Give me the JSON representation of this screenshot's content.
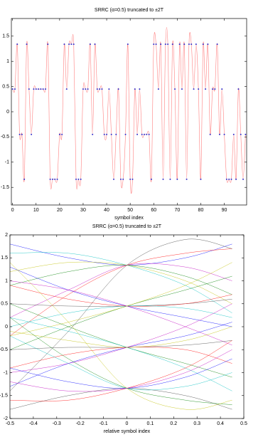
{
  "chart_data": [
    {
      "type": "line",
      "title": "SRRC (α=0.5) truncated to ±2T",
      "xlabel": "symbol index",
      "x": [
        0,
        1,
        2,
        3,
        4,
        5,
        6,
        7,
        8,
        9,
        10,
        11,
        12,
        13,
        14,
        15,
        16,
        17,
        18,
        19,
        20,
        21,
        22,
        23,
        24,
        25,
        26,
        27,
        28,
        29,
        30,
        31,
        32,
        33,
        34,
        35,
        36,
        37,
        38,
        39,
        40,
        41,
        42,
        43,
        44,
        45,
        46,
        47,
        48,
        49,
        50,
        51,
        52,
        53,
        54,
        55,
        56,
        57,
        58,
        59,
        60,
        61,
        62,
        63,
        64,
        65,
        66,
        67,
        68,
        69,
        70,
        71,
        72,
        73,
        74,
        75,
        76,
        77,
        78,
        79,
        80,
        81,
        82,
        83,
        84,
        85,
        86,
        87,
        88,
        89,
        90,
        91,
        92,
        93,
        94,
        95,
        96,
        97,
        98,
        99
      ],
      "series": [
        {
          "color": "#ff8080",
          "marker_color": "#3333cc",
          "markers": true,
          "values": [
            0.45,
            0.45,
            1.34,
            -0.45,
            -0.45,
            -1.34,
            1.34,
            0.45,
            -0.45,
            0.45,
            0.45,
            0.45,
            0.45,
            0.45,
            0.45,
            1.34,
            -1.34,
            -1.34,
            -1.34,
            -1.34,
            -0.45,
            -0.45,
            1.34,
            0.45,
            1.34,
            1.34,
            1.34,
            -1.34,
            -1.34,
            -1.34,
            0.45,
            0.45,
            0.45,
            1.34,
            -0.45,
            1.34,
            0.45,
            0.45,
            0.45,
            -0.45,
            -0.45,
            0.45,
            -0.45,
            -1.34,
            -0.45,
            0.45,
            -1.34,
            -1.34,
            -0.45,
            1.34,
            -1.34,
            -1.34,
            0.45,
            -0.45,
            0.45,
            -0.45,
            -0.45,
            -0.45,
            -0.45,
            -1.34,
            1.34,
            1.34,
            0.45,
            1.34,
            -1.34,
            1.34,
            1.34,
            -1.34,
            1.34,
            0.45,
            -1.34,
            1.34,
            0.45,
            1.34,
            -1.34,
            1.34,
            1.34,
            0.45,
            1.34,
            0.45,
            -1.34,
            1.34,
            0.45,
            1.34,
            -0.45,
            0.45,
            0.45,
            1.34,
            -0.45,
            0.45,
            -0.45,
            -1.34,
            -1.34,
            -1.34,
            -0.45,
            -1.34,
            0.45,
            -0.45,
            -1.34,
            -0.45
          ]
        }
      ],
      "xlim": [
        -0.5,
        99.5
      ],
      "ylim": [
        -1.85,
        1.85
      ],
      "xticks": [
        0,
        10,
        20,
        30,
        40,
        50,
        60,
        70,
        80,
        90
      ],
      "yticks": [
        -1.5,
        -1,
        -0.5,
        0,
        0.5,
        1,
        1.5
      ]
    },
    {
      "type": "eye",
      "title": "SRRC (α=0.5) truncated to ±2T",
      "xlabel": "relative symbol index",
      "x": [
        -0.5,
        -0.25,
        0,
        0.25,
        0.45
      ],
      "colors": [
        "#0000ff",
        "#008000",
        "#ff0000",
        "#00bfbf",
        "#bf00bf",
        "#bfbf00",
        "#404040"
      ],
      "series": [
        {
          "values": [
            1.8,
            1.5,
            1.34,
            1.5,
            1.8
          ]
        },
        {
          "values": [
            0.9,
            1.2,
            1.34,
            1.1,
            0.7
          ]
        },
        {
          "values": [
            -0.2,
            0.7,
            1.34,
            1.6,
            1.7
          ]
        },
        {
          "values": [
            1.6,
            1.6,
            1.34,
            0.9,
            0.3
          ]
        },
        {
          "values": [
            0.2,
            0.8,
            1.34,
            1.3,
            1.0
          ]
        },
        {
          "values": [
            1.2,
            1.4,
            1.34,
            1.0,
            0.5
          ]
        },
        {
          "values": [
            0.5,
            0.45,
            0.45,
            0.5,
            0.6
          ]
        },
        {
          "values": [
            1.3,
            0.8,
            0.45,
            0.2,
            0.0
          ]
        },
        {
          "values": [
            -0.5,
            0.0,
            0.45,
            0.8,
            1.1
          ]
        },
        {
          "values": [
            0.9,
            0.6,
            0.45,
            0.5,
            0.7
          ]
        },
        {
          "values": [
            0.0,
            0.3,
            0.45,
            0.4,
            0.2
          ]
        },
        {
          "values": [
            1.0,
            0.8,
            0.45,
            0.0,
            -0.4
          ]
        },
        {
          "values": [
            -0.2,
            0.1,
            0.45,
            0.9,
            1.4
          ]
        },
        {
          "values": [
            -0.5,
            -0.45,
            -0.45,
            -0.4,
            -0.3
          ]
        },
        {
          "values": [
            -1.3,
            -0.8,
            -0.45,
            -0.2,
            0.1
          ]
        },
        {
          "values": [
            0.5,
            0.0,
            -0.45,
            -0.8,
            -1.1
          ]
        },
        {
          "values": [
            -0.9,
            -0.6,
            -0.45,
            -0.5,
            -0.8
          ]
        },
        {
          "values": [
            0.2,
            -0.1,
            -0.45,
            -0.9,
            -1.4
          ]
        },
        {
          "values": [
            -1.0,
            -0.8,
            -0.45,
            0.0,
            0.5
          ]
        },
        {
          "values": [
            -0.1,
            -0.3,
            -0.45,
            -0.3,
            0.0
          ]
        },
        {
          "values": [
            -1.8,
            -1.5,
            -1.34,
            -1.5,
            -1.8
          ]
        },
        {
          "values": [
            -0.9,
            -1.2,
            -1.34,
            -1.1,
            -0.7
          ]
        },
        {
          "values": [
            0.2,
            -0.7,
            -1.34,
            -1.6,
            -1.7
          ]
        },
        {
          "values": [
            -1.6,
            -1.6,
            -1.34,
            -0.9,
            -0.3
          ]
        },
        {
          "values": [
            -0.2,
            -0.8,
            -1.34,
            -1.3,
            -1.0
          ]
        },
        {
          "values": [
            -1.2,
            -1.4,
            -1.34,
            -1.0,
            -0.5
          ]
        },
        {
          "values": [
            1.4,
            0.1,
            -1.34,
            -1.8,
            -1.6
          ]
        },
        {
          "values": [
            -1.4,
            -0.1,
            1.34,
            1.9,
            1.7
          ]
        }
      ],
      "xlim": [
        -0.5,
        0.5
      ],
      "ylim": [
        -2,
        2
      ],
      "xticks": [
        -0.5,
        -0.4,
        -0.3,
        -0.2,
        -0.1,
        0,
        0.1,
        0.2,
        0.3,
        0.4,
        0.5
      ],
      "yticks": [
        -2,
        -1.5,
        -1,
        -0.5,
        0,
        0.5,
        1,
        1.5,
        2
      ]
    }
  ]
}
